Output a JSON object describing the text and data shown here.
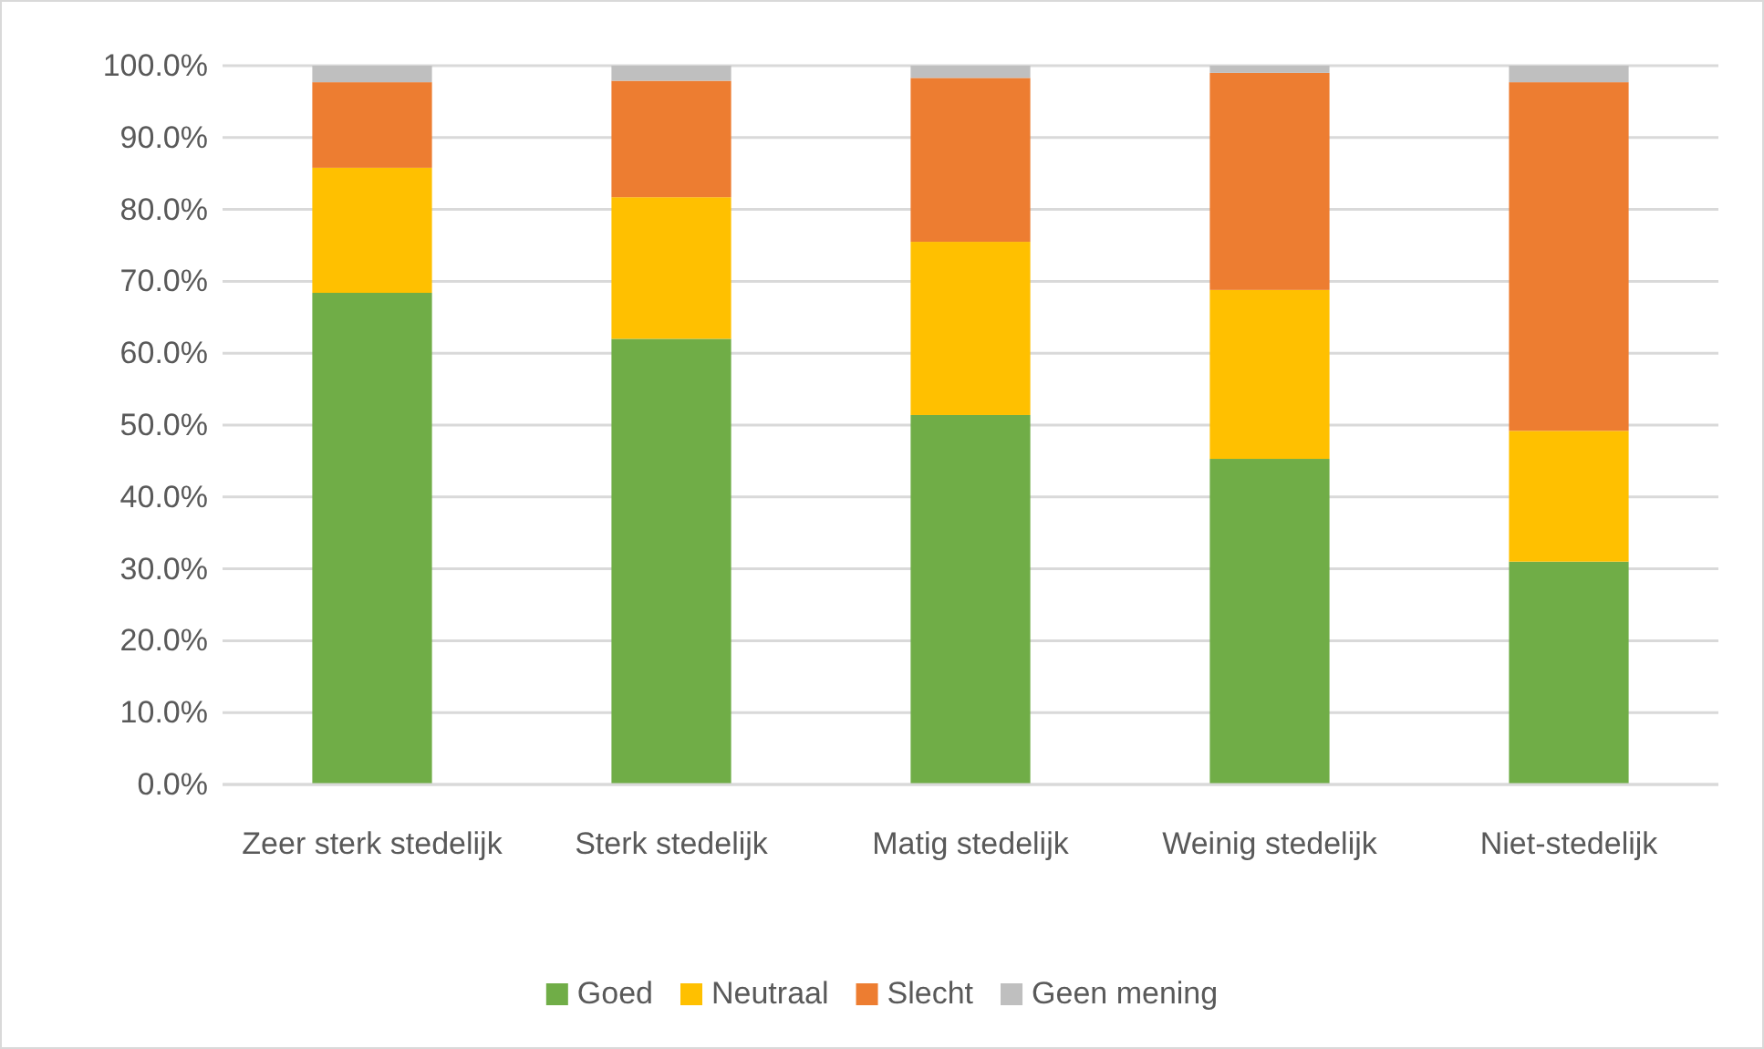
{
  "chart_data": {
    "type": "bar",
    "stacked": true,
    "categories": [
      "Zeer sterk stedelijk",
      "Sterk stedelijk",
      "Matig stedelijk",
      "Weinig stedelijk",
      "Niet-stedelijk"
    ],
    "series": [
      {
        "name": "Goed",
        "color": "#70ad47",
        "values": [
          68.4,
          62.0,
          51.4,
          45.3,
          31.0
        ]
      },
      {
        "name": "Neutraal",
        "color": "#ffc000",
        "values": [
          17.4,
          19.7,
          24.1,
          23.5,
          18.2
        ]
      },
      {
        "name": "Slecht",
        "color": "#ed7d31",
        "values": [
          11.9,
          16.2,
          22.8,
          30.2,
          48.5
        ]
      },
      {
        "name": "Geen mening",
        "color": "#bfbfbf",
        "values": [
          2.3,
          2.1,
          1.7,
          1.0,
          2.3
        ]
      }
    ],
    "ylim": [
      0,
      100
    ],
    "yticks": [
      {
        "value": 0,
        "label": "0.0%"
      },
      {
        "value": 10,
        "label": "10.0%"
      },
      {
        "value": 20,
        "label": "20.0%"
      },
      {
        "value": 30,
        "label": "30.0%"
      },
      {
        "value": 40,
        "label": "40.0%"
      },
      {
        "value": 50,
        "label": "50.0%"
      },
      {
        "value": 60,
        "label": "60.0%"
      },
      {
        "value": 70,
        "label": "70.0%"
      },
      {
        "value": 80,
        "label": "80.0%"
      },
      {
        "value": 90,
        "label": "90.0%"
      },
      {
        "value": 100,
        "label": "100.0%"
      }
    ],
    "grid": "y",
    "legend": "bottom"
  }
}
